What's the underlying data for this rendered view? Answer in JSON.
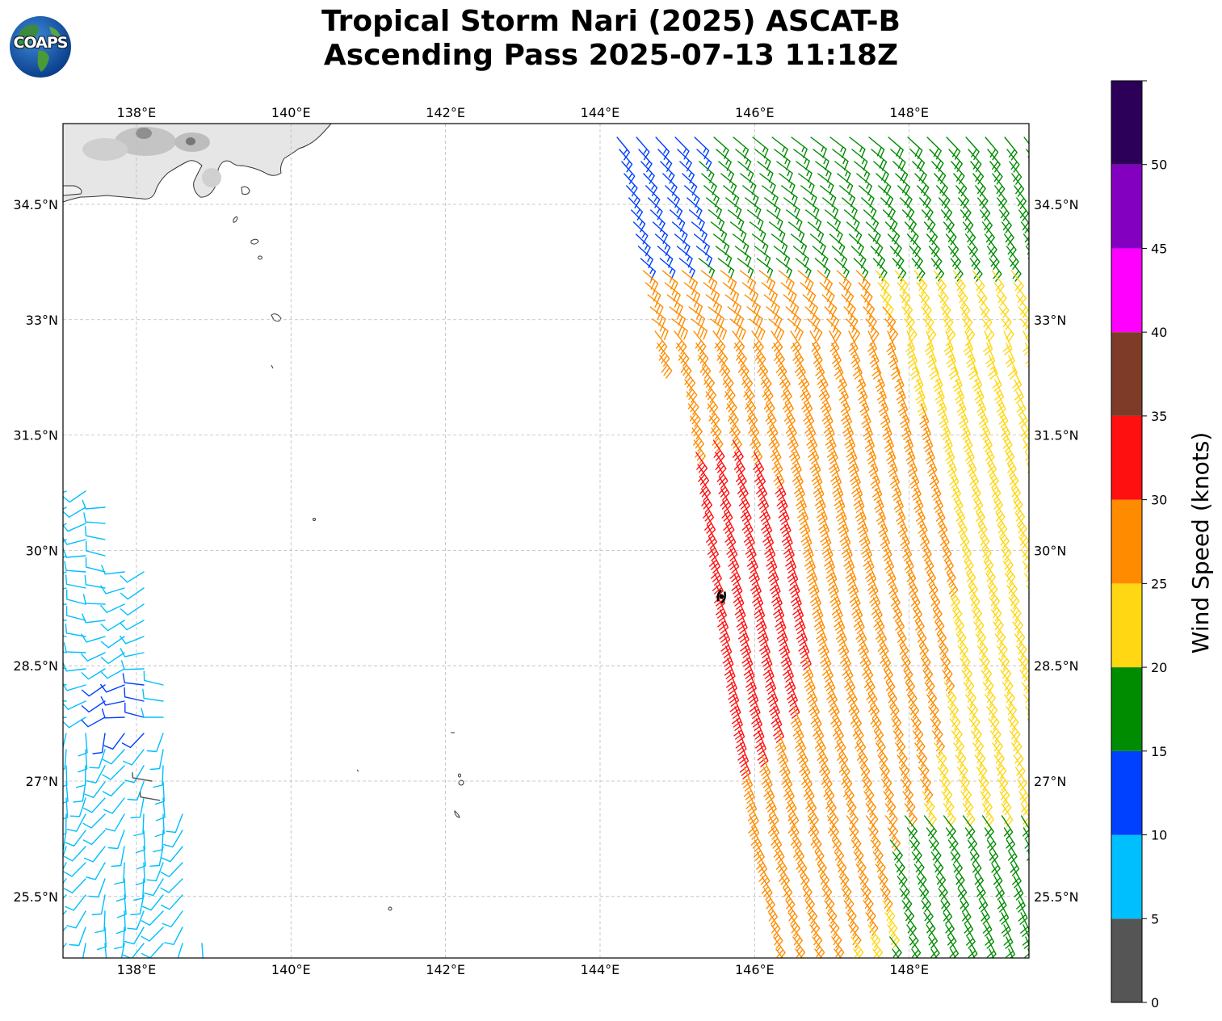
{
  "title": {
    "line1": "Tropical Storm Nari (2025) ASCAT-B",
    "line2": "Ascending Pass 2025-07-13 11:18Z"
  },
  "logo": {
    "text": "COAPS",
    "icon": "globe-icon"
  },
  "map": {
    "lon_range": [
      137.05,
      149.55
    ],
    "lat_range": [
      24.7,
      35.55
    ],
    "lon_ticks": [
      {
        "value": 138,
        "label": "138°E"
      },
      {
        "value": 140,
        "label": "140°E"
      },
      {
        "value": 142,
        "label": "142°E"
      },
      {
        "value": 144,
        "label": "144°E"
      },
      {
        "value": 146,
        "label": "146°E"
      },
      {
        "value": 148,
        "label": "148°E"
      }
    ],
    "lat_ticks": [
      {
        "value": 34.5,
        "label": "34.5°N"
      },
      {
        "value": 33,
        "label": "33°N"
      },
      {
        "value": 31.5,
        "label": "31.5°N"
      },
      {
        "value": 30,
        "label": "30°N"
      },
      {
        "value": 28.5,
        "label": "28.5°N"
      },
      {
        "value": 27,
        "label": "27°N"
      },
      {
        "value": 25.5,
        "label": "25.5°N"
      }
    ],
    "grid": true,
    "storm_center": {
      "lon": 145.57,
      "lat": 29.4
    }
  },
  "colorbar": {
    "label": "Wind Speed (knots)",
    "ticks": [
      "0",
      "5",
      "10",
      "15",
      "20",
      "25",
      "30",
      "35",
      "40",
      "45",
      "50"
    ],
    "bins": [
      {
        "min": 0,
        "max": 5,
        "color": "#555555"
      },
      {
        "min": 5,
        "max": 10,
        "color": "#00bfff"
      },
      {
        "min": 10,
        "max": 15,
        "color": "#0040ff"
      },
      {
        "min": 15,
        "max": 20,
        "color": "#008c00"
      },
      {
        "min": 20,
        "max": 25,
        "color": "#ffd712"
      },
      {
        "min": 25,
        "max": 30,
        "color": "#ff8c00"
      },
      {
        "min": 30,
        "max": 35,
        "color": "#ff1010"
      },
      {
        "min": 35,
        "max": 40,
        "color": "#7e3b28"
      },
      {
        "min": 40,
        "max": 45,
        "color": "#ff00ff"
      },
      {
        "min": 45,
        "max": 50,
        "color": "#8400c0"
      },
      {
        "min": 50,
        "max": 55,
        "color": "#2c0058"
      }
    ]
  },
  "chart_data": {
    "type": "wind-barb map",
    "swath_east": {
      "lon_west_edge_north": 144.2,
      "lon_west_edge_south": 146.3,
      "lat_range": [
        24.7,
        35.45
      ]
    },
    "swath_west": {
      "lon_east_edge_north": 138.0,
      "lon_east_edge_south": 138.9,
      "lat_range": [
        24.7,
        30.9
      ]
    }
  }
}
